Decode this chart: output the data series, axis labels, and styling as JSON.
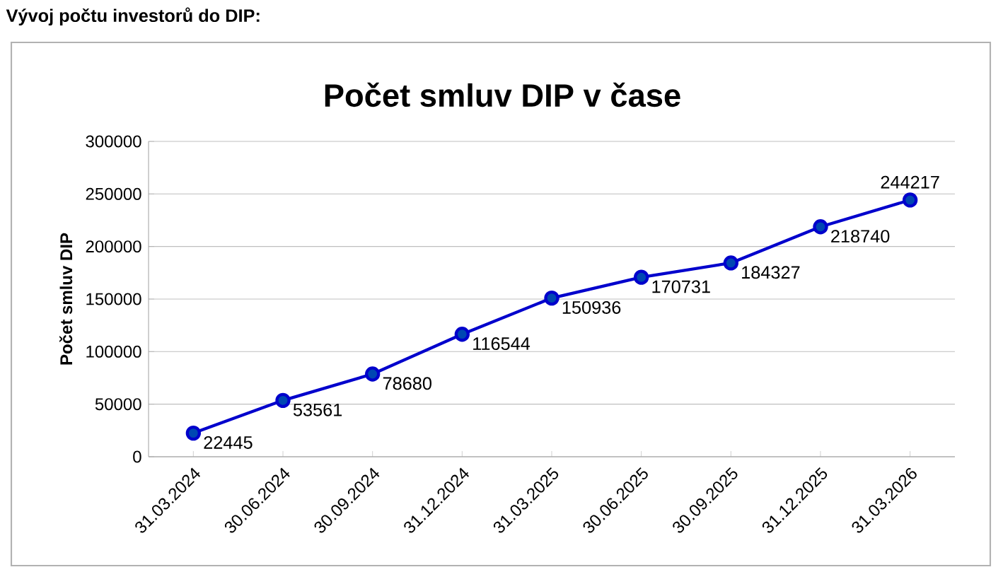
{
  "chart_data": {
    "type": "line",
    "title": "Vývoj počtu investorů do DIP:",
    "subtitle": "Počet smluv DIP v čase",
    "ylabel": "Počet smluv DIP",
    "categories": [
      "31.03.2024",
      "30.06.2024",
      "30.09.2024",
      "31.12.2024",
      "31.03.2025",
      "30.06.2025",
      "30.09.2025",
      "31.12.2025",
      "31.03.2026"
    ],
    "series": [
      {
        "color": "#0000cc",
        "values": [
          22445,
          53561,
          78680,
          116544,
          150936,
          170731,
          184327,
          218740,
          244217
        ]
      }
    ],
    "marker": "circle",
    "line_style": "solid",
    "ylim": [
      0,
      300000
    ],
    "yticks": [
      0,
      50000,
      100000,
      150000,
      200000,
      250000,
      300000
    ],
    "grid": "y",
    "data_labels": true
  }
}
